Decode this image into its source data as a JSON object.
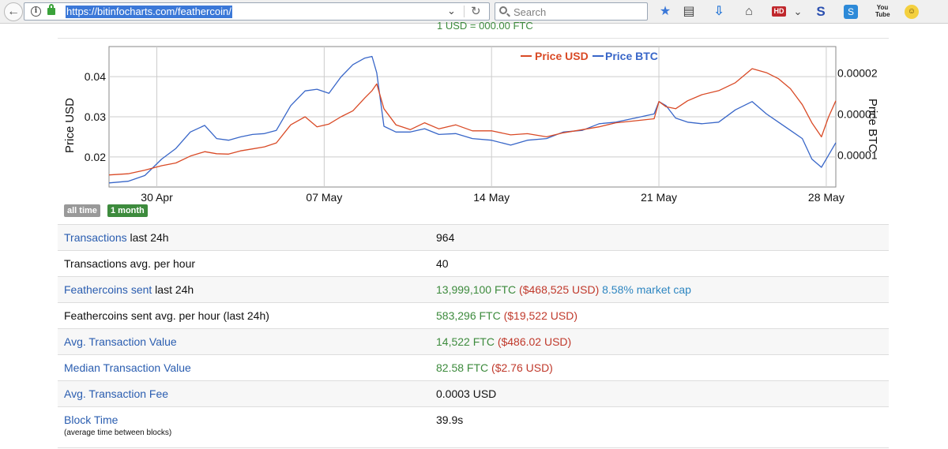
{
  "browser": {
    "url": "https://bitinfocharts.com/feathercoin/",
    "search_placeholder": "Search",
    "hd_label": "HD",
    "s_label": "S",
    "skype_label": "S",
    "youtube_label": "You Tube"
  },
  "page": {
    "top_partial_text": "1 USD = 000.00 FTC"
  },
  "chart_data": {
    "type": "line",
    "title": "",
    "legend_placement": "top",
    "legend": {
      "usd": "Price USD",
      "btc": "Price BTC"
    },
    "ylabel_left": "Price USD",
    "ylabel_right": "Price BTC",
    "ylim_left": [
      0.0125,
      0.0475
    ],
    "yticks_left": [
      "0.04",
      "0.03",
      "0.02"
    ],
    "yticks_left_values": [
      0.04,
      0.03,
      0.02
    ],
    "ylim_right": [
      6.1e-06,
      2.32e-05
    ],
    "yticks_right": [
      "0.00002",
      "0.00001",
      "0.00001"
    ],
    "yticks_right_values": [
      2e-05,
      1.5e-05,
      1e-05
    ],
    "x_ticks": [
      "30 Apr",
      "07 May",
      "14 May",
      "21 May",
      "28 May"
    ],
    "x_ticks_days": [
      2,
      9,
      16,
      23,
      30
    ],
    "x_range_days": [
      0,
      30.4
    ],
    "colors": {
      "usd": "#d94a26",
      "btc": "#3866c8"
    },
    "series": [
      {
        "name": "Price USD",
        "x_days": [
          0,
          0.8,
          1.5,
          2.2,
          2.8,
          3.4,
          4.0,
          4.5,
          5.0,
          5.5,
          6.0,
          6.5,
          7.0,
          7.6,
          8.2,
          8.7,
          9.2,
          9.7,
          10.2,
          10.7,
          11.0,
          11.2,
          11.5,
          12.0,
          12.6,
          13.2,
          13.8,
          14.5,
          15.2,
          16.0,
          16.8,
          17.5,
          18.3,
          19.0,
          19.8,
          20.5,
          21.2,
          22.0,
          22.8,
          23.0,
          23.3,
          23.7,
          24.2,
          24.8,
          25.5,
          26.2,
          26.9,
          27.5,
          28.0,
          28.5,
          29.0,
          29.4,
          29.8,
          30.1,
          30.4
        ],
        "values": [
          0.0155,
          0.0158,
          0.0167,
          0.0178,
          0.0185,
          0.0202,
          0.0213,
          0.0208,
          0.0207,
          0.0215,
          0.022,
          0.0225,
          0.0235,
          0.028,
          0.03,
          0.0275,
          0.0282,
          0.03,
          0.0315,
          0.0347,
          0.0365,
          0.0382,
          0.032,
          0.028,
          0.0268,
          0.0285,
          0.027,
          0.028,
          0.0265,
          0.0265,
          0.0255,
          0.0258,
          0.025,
          0.026,
          0.0268,
          0.0275,
          0.0285,
          0.029,
          0.0295,
          0.0338,
          0.0325,
          0.032,
          0.034,
          0.0355,
          0.0365,
          0.0385,
          0.042,
          0.041,
          0.0395,
          0.037,
          0.033,
          0.0285,
          0.025,
          0.03,
          0.034
        ]
      },
      {
        "name": "Price BTC",
        "x_days": [
          0,
          0.8,
          1.5,
          2.2,
          2.8,
          3.4,
          4.0,
          4.5,
          5.0,
          5.5,
          6.0,
          6.5,
          7.0,
          7.6,
          8.2,
          8.7,
          9.2,
          9.7,
          10.2,
          10.7,
          11.0,
          11.2,
          11.5,
          12.0,
          12.6,
          13.2,
          13.8,
          14.5,
          15.2,
          16.0,
          16.8,
          17.5,
          18.3,
          19.0,
          19.8,
          20.5,
          21.2,
          22.0,
          22.8,
          23.0,
          23.3,
          23.7,
          24.2,
          24.8,
          25.5,
          26.2,
          26.9,
          27.5,
          28.0,
          28.5,
          29.0,
          29.4,
          29.8,
          30.1,
          30.4
        ],
        "values": [
          6.6e-06,
          6.8e-06,
          7.5e-06,
          9.5e-06,
          1.08e-05,
          1.28e-05,
          1.36e-05,
          1.2e-05,
          1.18e-05,
          1.22e-05,
          1.25e-05,
          1.26e-05,
          1.3e-05,
          1.6e-05,
          1.78e-05,
          1.8e-05,
          1.75e-05,
          1.95e-05,
          2.1e-05,
          2.18e-05,
          2.2e-05,
          2e-05,
          1.35e-05,
          1.28e-05,
          1.28e-05,
          1.32e-05,
          1.25e-05,
          1.26e-05,
          1.2e-05,
          1.18e-05,
          1.12e-05,
          1.18e-05,
          1.2e-05,
          1.28e-05,
          1.3e-05,
          1.38e-05,
          1.4e-05,
          1.45e-05,
          1.5e-05,
          1.65e-05,
          1.6e-05,
          1.45e-05,
          1.4e-05,
          1.38e-05,
          1.4e-05,
          1.55e-05,
          1.65e-05,
          1.5e-05,
          1.4e-05,
          1.3e-05,
          1.2e-05,
          9.5e-06,
          8.5e-06,
          1e-05,
          1.15e-05
        ]
      }
    ]
  },
  "range_buttons": {
    "all_time": "all time",
    "one_month": "1 month"
  },
  "stats": [
    {
      "label_link": "Transactions",
      "label_rest": " last 24h",
      "value": "964"
    },
    {
      "label_link": "",
      "label_rest": "Transactions avg. per hour",
      "value": "40"
    },
    {
      "label_link": "Feathercoins sent",
      "label_rest": " last 24h",
      "value_green": "13,999,100 FTC",
      "value_red": " ($468,525 USD)",
      "value_blue": " 8.58% market cap"
    },
    {
      "label_link": "",
      "label_rest": "Feathercoins sent avg. per hour (last 24h)",
      "value_green": "583,296 FTC",
      "value_red": " ($19,522 USD)"
    },
    {
      "label_link": "Avg. Transaction Value",
      "label_rest": "",
      "value_green": "14,522 FTC",
      "value_red": " ($486.02 USD)"
    },
    {
      "label_link": "Median Transaction Value",
      "label_rest": "",
      "value_green": "82.58 FTC",
      "value_red": " ($2.76 USD)"
    },
    {
      "label_link": "Avg. Transaction Fee",
      "label_rest": "",
      "value": "0.0003 USD"
    },
    {
      "label_link": "Block Time",
      "label_small": "(average time between blocks)",
      "value": "39.9s"
    }
  ]
}
